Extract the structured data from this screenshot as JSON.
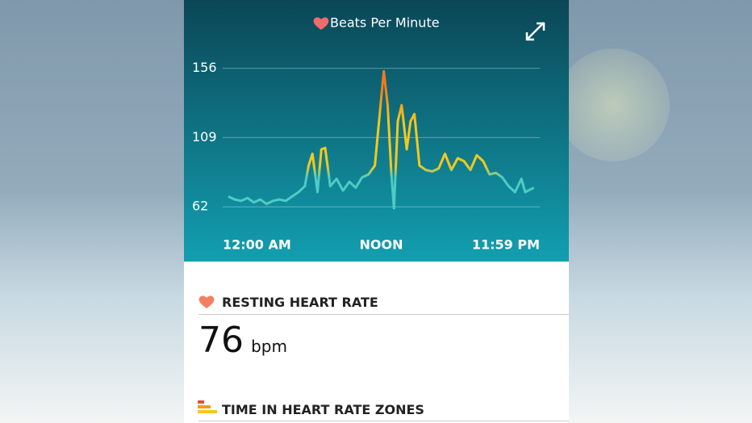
{
  "chart_data": {
    "type": "line",
    "title": "Beats Per Minute",
    "x": [
      0,
      0.5,
      1,
      1.5,
      2,
      2.5,
      3,
      3.5,
      4,
      4.5,
      5,
      5.5,
      6,
      6.3,
      6.6,
      7,
      7.3,
      7.6,
      8,
      8.5,
      9,
      9.5,
      10,
      10.5,
      11,
      11.5,
      12,
      12.2,
      12.5,
      12.8,
      13,
      13.3,
      13.6,
      14,
      14.3,
      14.6,
      15,
      15.5,
      16,
      16.5,
      17,
      17.5,
      18,
      18.5,
      19,
      19.5,
      20,
      20.5,
      21,
      21.5,
      22,
      22.5,
      23,
      23.3,
      23.98
    ],
    "values": [
      69,
      67,
      66,
      68,
      65,
      67,
      64,
      66,
      67,
      66,
      69,
      72,
      76,
      90,
      98,
      72,
      101,
      102,
      76,
      81,
      73,
      79,
      75,
      82,
      84,
      90,
      136,
      154,
      131,
      84,
      61,
      120,
      131,
      101,
      120,
      125,
      90,
      87,
      86,
      88,
      98,
      87,
      95,
      93,
      87,
      97,
      93,
      84,
      85,
      82,
      76,
      72,
      81,
      72,
      75
    ],
    "colors": [
      "#4ecbc4",
      "#f6c81c",
      "#f07a1d"
    ],
    "xlim": [
      0,
      24
    ],
    "xticks": [
      {
        "value": 0,
        "label": "12:00 AM"
      },
      {
        "value": 12,
        "label": "NOON"
      },
      {
        "value": 23.98,
        "label": "11:59 PM"
      }
    ],
    "ylim": [
      55,
      164
    ],
    "yticks": [
      62,
      109,
      156
    ],
    "grid": true
  },
  "resting_heart_rate": {
    "label": "RESTING HEART RATE",
    "value": 76,
    "unit": "bpm"
  },
  "zones": {
    "label": "TIME IN HEART RATE ZONES"
  }
}
